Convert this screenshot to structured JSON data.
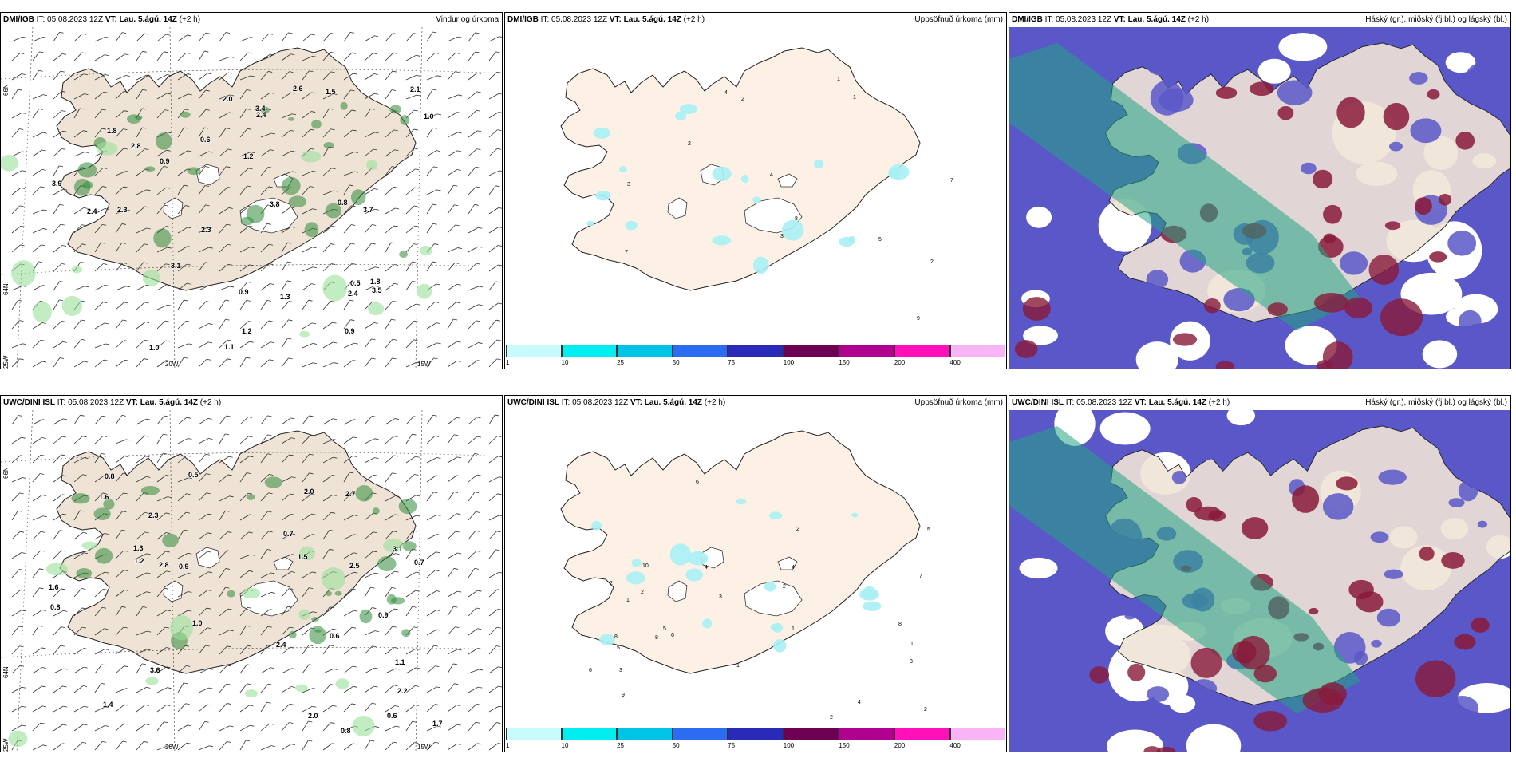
{
  "colors": {
    "land": "#efe3d6",
    "land_precip": "#fdf1e6",
    "cloud_low": "#5a58c8",
    "cloud_mid": "#22a484",
    "cloud_high": "#8a1a3a",
    "rain": "#2f8a3a",
    "cyan": "#a8f0f4"
  },
  "rows": [
    {
      "model": "DMI/IGB",
      "it": "IT: 05.08.2023 12Z",
      "vt": "VT: Lau. 5.ágú. 14Z",
      "lead": "(+2 h)"
    },
    {
      "model": "UWC/DINI ISL",
      "it": "IT: 05.08.2023 12Z",
      "vt": "VT: Lau. 5.ágú. 14Z",
      "lead": "(+2 h)"
    }
  ],
  "panel_titles": {
    "wind": "Vindur og úrkoma",
    "precip": "Uppsöfnuð úrkoma (mm)",
    "cloud": "Háský (gr.), miðský (fj.bl.) og lágský (bl.)"
  },
  "axis_labels": {
    "lat66": "66N",
    "lat64": "64N",
    "lon25": "25W",
    "lon20": "20W",
    "lon15": "15W"
  },
  "colorbar": {
    "ticks": [
      "1",
      "10",
      "25",
      "50",
      "75",
      "100",
      "150",
      "200",
      "400"
    ],
    "colors": [
      "#c8fbfb",
      "#00eef0",
      "#00c4e6",
      "#2c6cf0",
      "#2a2ab8",
      "#6c0052",
      "#b0008e",
      "#ff10b8",
      "#f8b4f4"
    ]
  },
  "wind_values": [
    [
      "2.3",
      "2.8",
      "1.5",
      "2.4",
      "1.0",
      "0.9",
      "3.7",
      "3.8",
      "3.4",
      "1.3",
      "2.3",
      "2.4",
      "3.5",
      "0.5",
      "3.1",
      "1.8",
      "3.9",
      "2.4",
      "2.1",
      "0.9",
      "0.8",
      "1.1",
      "1.2",
      "1.0",
      "0.9",
      "0.6",
      "2.0",
      "1.8",
      "1.2",
      "2.6"
    ],
    [
      "1.3",
      "1.6",
      "2.0",
      "1.5",
      "2.7",
      "3.1",
      "1.0",
      "3.6",
      "1.7",
      "2.5",
      "1.1",
      "2.8",
      "0.8",
      "0.7",
      "1.4",
      "0.6",
      "0.8",
      "2.2",
      "1.2",
      "2.0",
      "0.9",
      "2.4",
      "0.8",
      "0.9",
      "2.3",
      "1.6",
      "0.6",
      "0.7",
      "0.5"
    ]
  ],
  "precip_values": [
    [
      "7",
      "2",
      "2",
      "9",
      "8",
      "7",
      "3",
      "4",
      "3",
      "4",
      "2",
      "1",
      "5",
      "1"
    ],
    [
      "2",
      "2",
      "3",
      "1",
      "3",
      "4",
      "5",
      "8",
      "2",
      "1",
      "5",
      "6",
      "9",
      "8",
      "2",
      "3",
      "6",
      "7",
      "1",
      "2",
      "2",
      "4",
      "5",
      "10",
      "6",
      "4",
      "1",
      "8"
    ]
  ]
}
